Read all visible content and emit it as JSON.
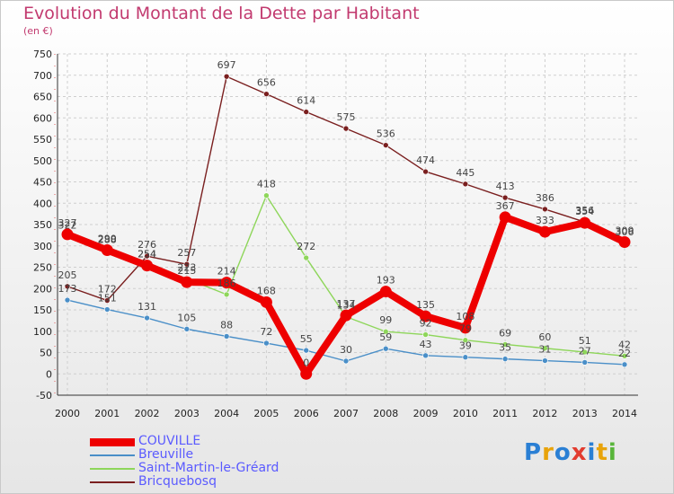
{
  "title": "Evolution du Montant de la Dette par Habitant",
  "subtitle": "(en €)",
  "brand": {
    "text": "Proxiti",
    "letters": [
      "P",
      "r",
      "o",
      "x",
      "i",
      "t",
      "i"
    ],
    "colors": [
      "#2a7fd4",
      "#e8a30b",
      "#2a7fd4",
      "#e23c2f",
      "#2a7fd4",
      "#e8a30b",
      "#58b53a"
    ]
  },
  "chart_data": {
    "type": "line",
    "x": [
      2000,
      2001,
      2002,
      2003,
      2004,
      2005,
      2006,
      2007,
      2008,
      2009,
      2010,
      2011,
      2012,
      2013,
      2014
    ],
    "ylim": [
      -50,
      750
    ],
    "yticks": [
      -50,
      0,
      50,
      100,
      150,
      200,
      250,
      300,
      350,
      400,
      450,
      500,
      550,
      600,
      650,
      700,
      750
    ],
    "grid": true,
    "legend_position": "bottom-left",
    "series": [
      {
        "name": "Bricquebosq",
        "color": "#7a1f1f",
        "values": [
          205,
          172,
          276,
          257,
          697,
          656,
          614,
          575,
          536,
          474,
          445,
          413,
          386,
          356,
          306
        ]
      },
      {
        "name": "Saint-Martin-le-Gréard",
        "color": "#8ed65a",
        "values": [
          322,
          288,
          254,
          223,
          186,
          418,
          272,
          134,
          99,
          92,
          79,
          69,
          60,
          51,
          42
        ]
      },
      {
        "name": "Breuville",
        "color": "#4a8fc8",
        "values": [
          173,
          151,
          131,
          105,
          88,
          72,
          55,
          30,
          59,
          43,
          39,
          35,
          31,
          27,
          22
        ]
      },
      {
        "name": "COUVILLE",
        "color": "#ee0000",
        "values": [
          327,
          290,
          254,
          215,
          214,
          168,
          0,
          137,
          193,
          135,
          108,
          367,
          333,
          354,
          309
        ]
      }
    ]
  }
}
